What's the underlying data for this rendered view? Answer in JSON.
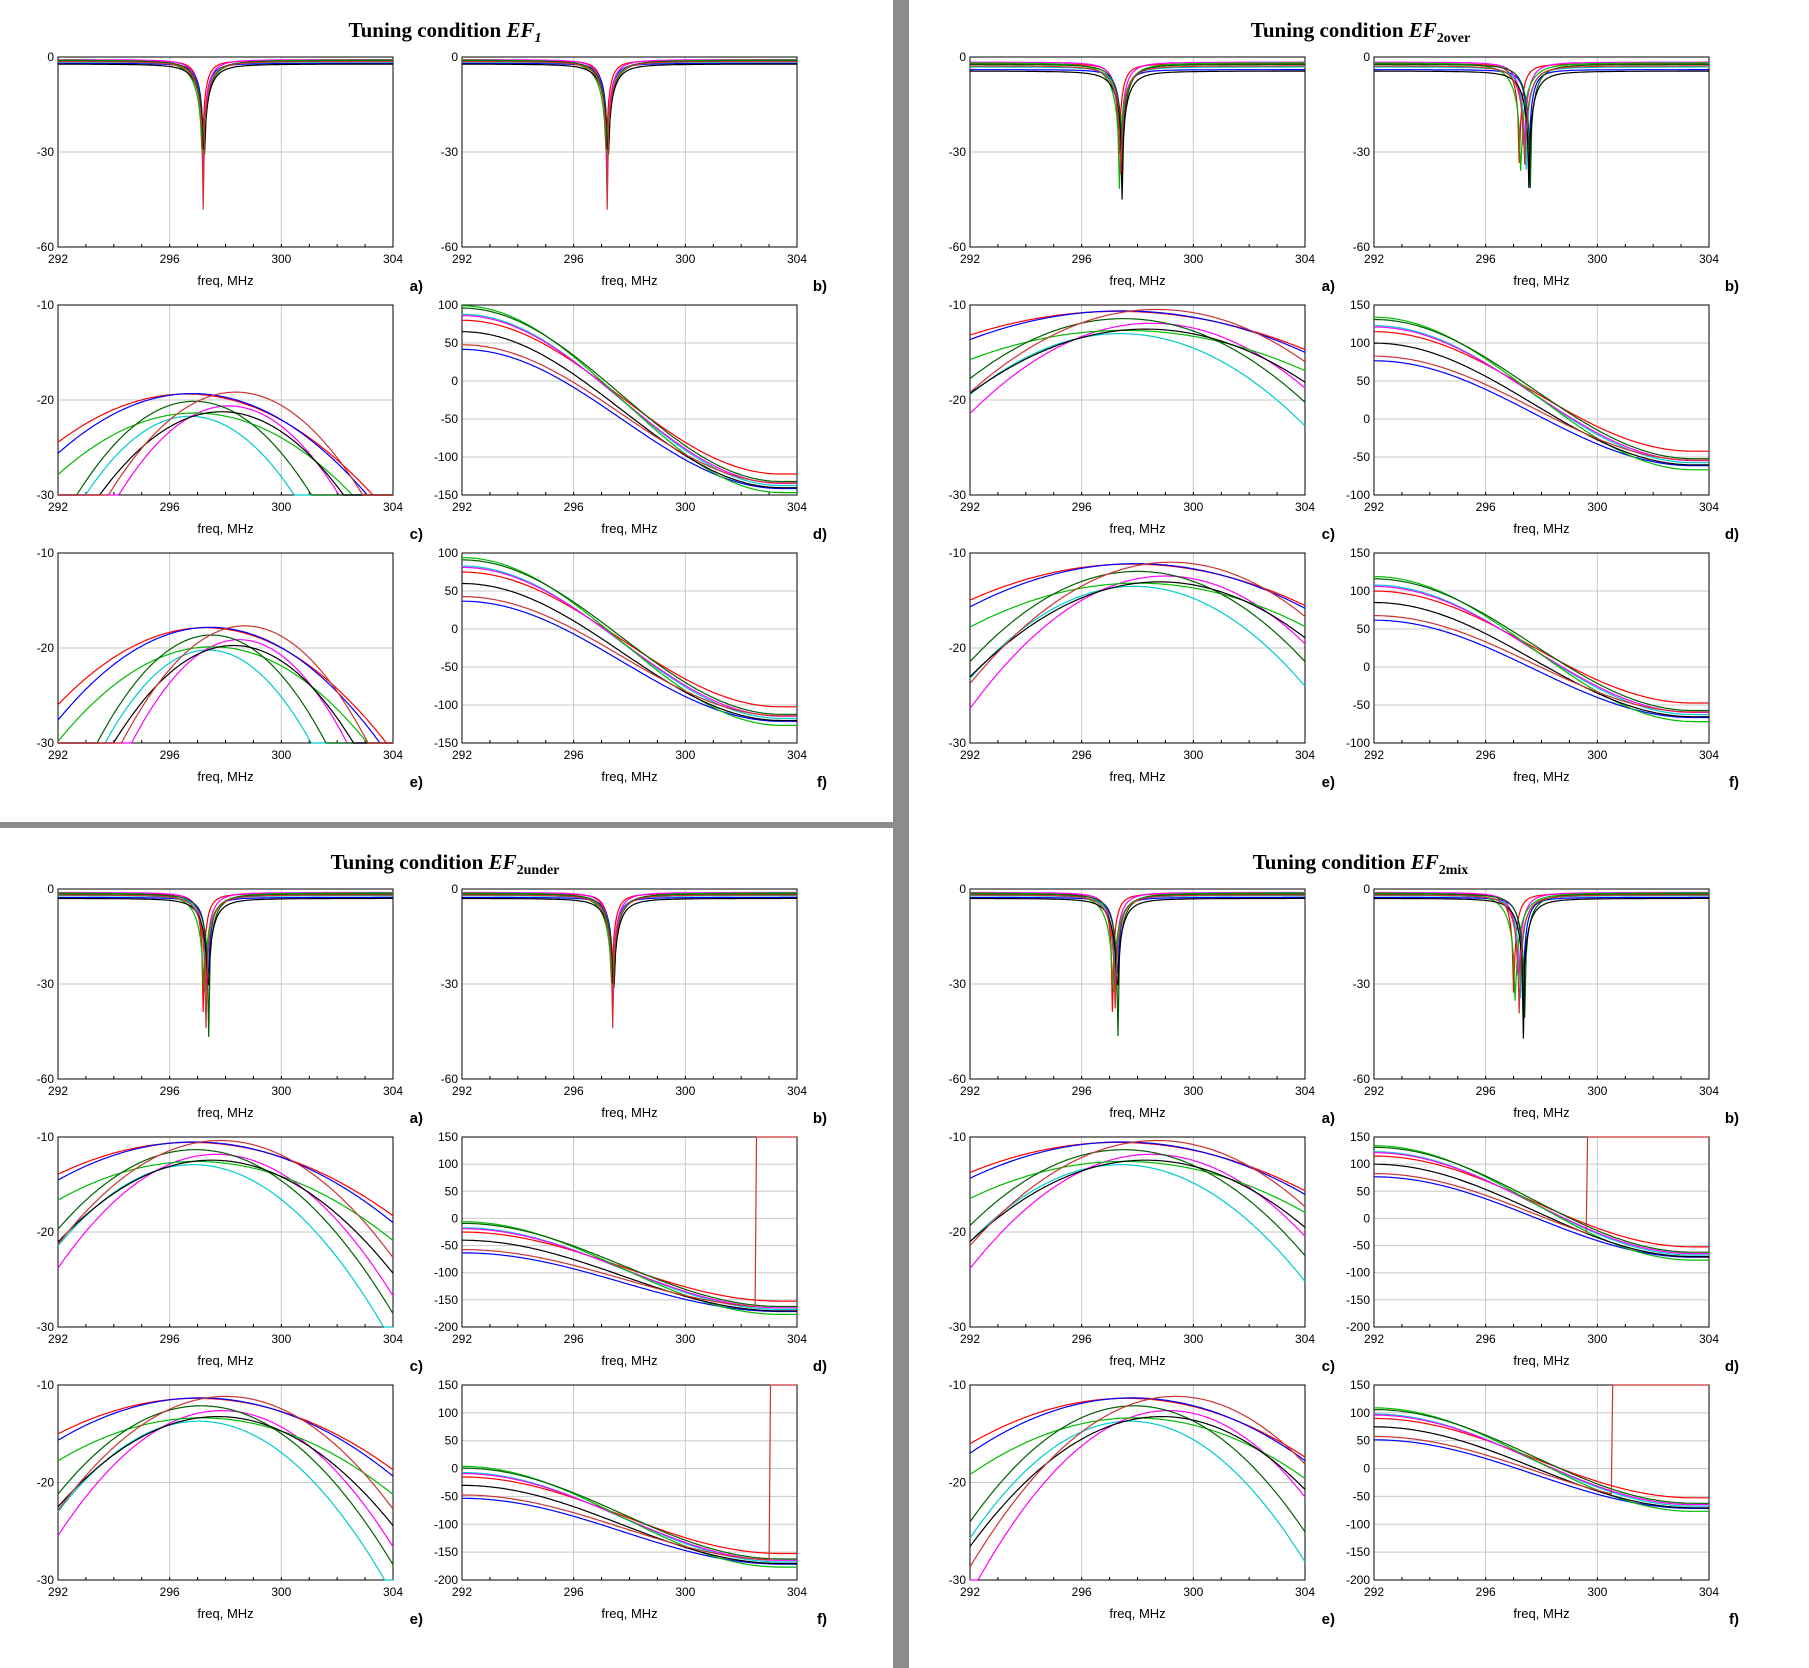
{
  "x_axis": {
    "label": "freq, MHz",
    "ticks": [
      "292",
      "296",
      "300",
      "304"
    ],
    "range": [
      292,
      304
    ]
  },
  "series_colors": [
    "#ff0000",
    "#0000ff",
    "#00cccc",
    "#ff00ff",
    "#00bb00",
    "#006000",
    "#000000",
    "#cc3333"
  ],
  "quadrants": [
    {
      "id": "EF1",
      "title_prefix": "Tuning condition",
      "title_main": "EF",
      "title_sub": "1",
      "title_sub_style": "italic-inline",
      "panels": [
        {
          "letter": "a)",
          "kind": "notch",
          "yticks": [
            "0",
            "-30",
            "-60"
          ],
          "ylim": [
            -60,
            0
          ],
          "f0": 297.2,
          "depth": -60,
          "spread": 0.05,
          "base": -1.5
        },
        {
          "letter": "b)",
          "kind": "notch",
          "yticks": [
            "0",
            "-30",
            "-60"
          ],
          "ylim": [
            -60,
            0
          ],
          "f0": 297.2,
          "depth": -60,
          "spread": 0.05,
          "base": -1.5
        },
        {
          "letter": "c)",
          "kind": "peak",
          "yticks": [
            "-10",
            "-20",
            "-30"
          ],
          "ylim": [
            -30,
            -10
          ],
          "f0": 297.5,
          "peak": -19,
          "spread": 0.5,
          "width": 5.5
        },
        {
          "letter": "d)",
          "kind": "phase",
          "yticks": [
            "100",
            "50",
            "0",
            "-50",
            "-100",
            "-150"
          ],
          "ylim": [
            -150,
            100
          ],
          "start": 100,
          "end": -150,
          "zero": 297.5
        },
        {
          "letter": "e)",
          "kind": "peak",
          "yticks": [
            "-10",
            "-20",
            "-30"
          ],
          "ylim": [
            -30,
            -10
          ],
          "f0": 298,
          "peak": -17.5,
          "spread": 0.4,
          "width": 5
        },
        {
          "letter": "f)",
          "kind": "phase",
          "yticks": [
            "100",
            "50",
            "0",
            "-50",
            "-100",
            "-150"
          ],
          "ylim": [
            -150,
            100
          ],
          "start": 95,
          "end": -130,
          "zero": 296.5
        }
      ]
    },
    {
      "id": "EF2over",
      "title_prefix": "Tuning condition",
      "title_main": "EF",
      "title_sub": "2over",
      "title_sub_style": "bold-sub",
      "panels": [
        {
          "letter": "a)",
          "kind": "notch",
          "yticks": [
            "0",
            "-30",
            "-60"
          ],
          "ylim": [
            -60,
            0
          ],
          "f0": 297.4,
          "depth": -44,
          "spread": 0.1,
          "base": -3
        },
        {
          "letter": "b)",
          "kind": "notch",
          "yticks": [
            "0",
            "-30",
            "-60"
          ],
          "ylim": [
            -60,
            0
          ],
          "f0": 297.4,
          "depth": -40,
          "spread": 0.3,
          "base": -3
        },
        {
          "letter": "c)",
          "kind": "peak",
          "yticks": [
            "-10",
            "-20",
            "-30"
          ],
          "ylim": [
            -30,
            -10
          ],
          "f0": 298,
          "peak": -10.3,
          "spread": 0.4,
          "width": 9
        },
        {
          "letter": "d)",
          "kind": "phase",
          "yticks": [
            "150",
            "100",
            "50",
            "0",
            "-50",
            "-100"
          ],
          "ylim": [
            -100,
            150
          ],
          "start": 135,
          "end": -70,
          "zero": 300
        },
        {
          "letter": "e)",
          "kind": "peak",
          "yticks": [
            "-10",
            "-20",
            "-30"
          ],
          "ylim": [
            -30,
            -10
          ],
          "f0": 298.5,
          "peak": -10.8,
          "spread": 0.4,
          "width": 8
        },
        {
          "letter": "f)",
          "kind": "phase",
          "yticks": [
            "150",
            "100",
            "50",
            "0",
            "-50",
            "-100"
          ],
          "ylim": [
            -100,
            150
          ],
          "start": 120,
          "end": -75,
          "zero": 299
        }
      ]
    },
    {
      "id": "EF2under",
      "title_prefix": "Tuning condition",
      "title_main": "EF",
      "title_sub": "2under",
      "title_sub_style": "bold-sub",
      "panels": [
        {
          "letter": "a)",
          "kind": "notch",
          "yticks": [
            "0",
            "-30",
            "-60"
          ],
          "ylim": [
            -60,
            0
          ],
          "f0": 297.3,
          "depth": -54,
          "spread": 0.15,
          "base": -2
        },
        {
          "letter": "b)",
          "kind": "notch",
          "yticks": [
            "0",
            "-30",
            "-60"
          ],
          "ylim": [
            -60,
            0
          ],
          "f0": 297.4,
          "depth": -54,
          "spread": 0.05,
          "base": -2
        },
        {
          "letter": "c)",
          "kind": "peak",
          "yticks": [
            "-10",
            "-20",
            "-30"
          ],
          "ylim": [
            -30,
            -10
          ],
          "f0": 297.3,
          "peak": -10.2,
          "spread": 0.3,
          "width": 7
        },
        {
          "letter": "d)",
          "kind": "phase",
          "yticks": [
            "150",
            "100",
            "50",
            "0",
            "-50",
            "-100",
            "-150",
            "-200"
          ],
          "ylim": [
            -200,
            150
          ],
          "start": -5,
          "end": -180,
          "zero": 290,
          "wrap": 302.5
        },
        {
          "letter": "e)",
          "kind": "peak",
          "yticks": [
            "-10",
            "-20",
            "-30"
          ],
          "ylim": [
            -30,
            -10
          ],
          "f0": 297.5,
          "peak": -11,
          "spread": 0.3,
          "width": 7
        },
        {
          "letter": "f)",
          "kind": "phase",
          "yticks": [
            "150",
            "100",
            "50",
            "0",
            "-50",
            "-100",
            "-150",
            "-200"
          ],
          "ylim": [
            -200,
            150
          ],
          "start": 5,
          "end": -180,
          "zero": 290,
          "wrap": 303
        }
      ]
    },
    {
      "id": "EF2mix",
      "title_prefix": "Tuning condition",
      "title_main": "EF",
      "title_sub": "2mix",
      "title_sub_style": "bold-sub",
      "panels": [
        {
          "letter": "a)",
          "kind": "notch",
          "yticks": [
            "0",
            "-30",
            "-60"
          ],
          "ylim": [
            -60,
            0
          ],
          "f0": 297.2,
          "depth": -46,
          "spread": 0.15,
          "base": -2
        },
        {
          "letter": "b)",
          "kind": "notch",
          "yticks": [
            "0",
            "-30",
            "-60"
          ],
          "ylim": [
            -60,
            0
          ],
          "f0": 297.2,
          "depth": -48,
          "spread": 0.3,
          "base": -2
        },
        {
          "letter": "c)",
          "kind": "peak",
          "yticks": [
            "-10",
            "-20",
            "-30"
          ],
          "ylim": [
            -30,
            -10
          ],
          "f0": 298,
          "peak": -10.2,
          "spread": 0.4,
          "width": 8
        },
        {
          "letter": "d)",
          "kind": "phase",
          "yticks": [
            "150",
            "100",
            "50",
            "0",
            "-50",
            "-100",
            "-150",
            "-200"
          ],
          "ylim": [
            -200,
            150
          ],
          "start": 135,
          "end": -80,
          "zero": 299.5,
          "wrap": 299.6
        },
        {
          "letter": "e)",
          "kind": "peak",
          "yticks": [
            "-10",
            "-20",
            "-30"
          ],
          "ylim": [
            -30,
            -10
          ],
          "f0": 298.5,
          "peak": -11,
          "spread": 0.5,
          "width": 7
        },
        {
          "letter": "f)",
          "kind": "phase",
          "yticks": [
            "150",
            "100",
            "50",
            "0",
            "-50",
            "-100",
            "-150",
            "-200"
          ],
          "ylim": [
            -200,
            150
          ],
          "start": 110,
          "end": -80,
          "zero": 298,
          "wrap": 300.5
        }
      ]
    }
  ],
  "chart_data": {
    "type": "line",
    "description_units": {
      "x": "MHz"
    },
    "panels_per_quadrant": 6,
    "x_range": [
      292,
      304
    ]
  }
}
